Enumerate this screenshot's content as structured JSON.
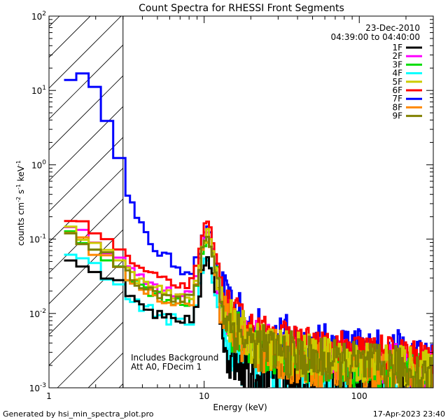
{
  "chart_data": {
    "type": "line",
    "title": "Count Spectra for RHESSI Front Segments",
    "xlabel": "Energy (keV)",
    "ylabel_parts": {
      "base": "counts cm",
      "exp1": "-2",
      "mid": " s",
      "exp2": "-1",
      "mid2": " keV",
      "exp3": "-1"
    },
    "x_scale": "log",
    "y_scale": "log",
    "xlim": [
      1,
      300
    ],
    "ylim": [
      0.001,
      100
    ],
    "x_major_ticks": [
      {
        "value": 1,
        "label": "1"
      },
      {
        "value": 10,
        "label": "10"
      },
      {
        "value": 100,
        "label": "100"
      }
    ],
    "y_major_ticks": [
      {
        "value": 0.001,
        "base": "10",
        "exp": "-3"
      },
      {
        "value": 0.01,
        "base": "10",
        "exp": "-2"
      },
      {
        "value": 0.1,
        "base": "10",
        "exp": "-1"
      },
      {
        "value": 1,
        "base": "10",
        "exp": "0"
      },
      {
        "value": 10,
        "base": "10",
        "exp": "1"
      },
      {
        "value": 100,
        "base": "10",
        "exp": "2"
      }
    ],
    "date_label": "23-Dec-2010",
    "time_label": "04:39:00 to 04:40:00",
    "excluded_region": {
      "x_min": 1,
      "x_max": 3
    },
    "annotations": [
      "Includes Background",
      "Att A0, FDecim 1"
    ],
    "legend_position": "top-right",
    "series": [
      {
        "name": "1F",
        "color": "#000000",
        "shift": 0.32,
        "noise": 0.55
      },
      {
        "name": "2F",
        "color": "#ff00ff",
        "shift": 0.78,
        "noise": 0.35
      },
      {
        "name": "3F",
        "color": "#00dd00",
        "shift": 0.62,
        "noise": 0.4
      },
      {
        "name": "4F",
        "color": "#00ffff",
        "shift": 0.34,
        "noise": 0.5
      },
      {
        "name": "5F",
        "color": "#cccc00",
        "shift": 0.72,
        "noise": 0.38
      },
      {
        "name": "6F",
        "color": "#ff0000",
        "shift": 1.05,
        "noise": 0.3
      },
      {
        "name": "7F",
        "color": "#0000ff",
        "shift": 0.55,
        "noise": 0.45
      },
      {
        "name": "8F",
        "color": "#ff8800",
        "shift": 0.6,
        "noise": 0.42
      },
      {
        "name": "9F",
        "color": "#808000",
        "shift": 0.66,
        "noise": 0.4
      }
    ],
    "anchors": {
      "energy": [
        1.25,
        1.5,
        1.8,
        2.1,
        2.5,
        3.0,
        3.5,
        4.2,
        5.0,
        6.0,
        7.0,
        8.0,
        9.0,
        9.6,
        10.2,
        10.6,
        11.2,
        12.0,
        14.0,
        17.0,
        20.0,
        25.0,
        30.0,
        40.0,
        50.0,
        70.0,
        100.0,
        150.0,
        200.0,
        250.0,
        300.0
      ],
      "counts_7F": [
        16,
        15,
        9.5,
        5.5,
        1.85,
        0.58,
        0.2,
        0.1,
        0.065,
        0.05,
        0.04,
        0.038,
        0.06,
        0.1,
        0.13,
        0.12,
        0.07,
        0.03,
        0.012,
        0.008,
        0.006,
        0.005,
        0.0045,
        0.004,
        0.0035,
        0.003,
        0.003,
        0.0028,
        0.0025,
        0.0022,
        0.0018
      ],
      "counts_base": [
        0.18,
        0.15,
        0.12,
        0.1,
        0.075,
        0.055,
        0.042,
        0.034,
        0.028,
        0.024,
        0.022,
        0.025,
        0.05,
        0.11,
        0.17,
        0.15,
        0.09,
        0.035,
        0.012,
        0.008,
        0.006,
        0.005,
        0.0045,
        0.004,
        0.0036,
        0.0032,
        0.003,
        0.0028,
        0.0026,
        0.0023,
        0.002
      ]
    }
  },
  "footer": {
    "generated_by": "Generated by hsi_min_spectra_plot.pro",
    "timestamp": "17-Apr-2023 23:40"
  }
}
